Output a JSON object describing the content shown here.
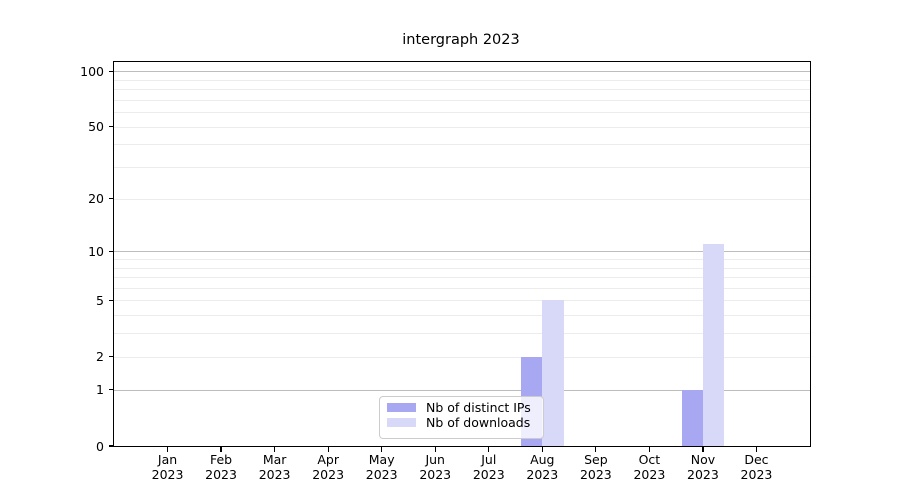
{
  "chart_data": {
    "type": "bar",
    "title": "intergraph 2023",
    "months": [
      "Jan",
      "Feb",
      "Mar",
      "Apr",
      "May",
      "Jun",
      "Jul",
      "Aug",
      "Sep",
      "Oct",
      "Nov",
      "Dec"
    ],
    "year": "2023",
    "categories": [
      "Jan 2023",
      "Feb 2023",
      "Mar 2023",
      "Apr 2023",
      "May 2023",
      "Jun 2023",
      "Jul 2023",
      "Aug 2023",
      "Sep 2023",
      "Oct 2023",
      "Nov 2023",
      "Dec 2023"
    ],
    "series": [
      {
        "name": "Nb of distinct IPs",
        "color": "#a8a8f2",
        "values": [
          0,
          0,
          0,
          0,
          0,
          0,
          0,
          2,
          0,
          0,
          1,
          0
        ]
      },
      {
        "name": "Nb of downloads",
        "color": "#d8d8f8",
        "values": [
          0,
          0,
          0,
          0,
          0,
          0,
          0,
          5,
          0,
          0,
          11,
          0
        ]
      }
    ],
    "yscale": "log10(v+1)",
    "ylim": [
      0,
      112
    ],
    "yticks": [
      0,
      1,
      2,
      5,
      10,
      20,
      50,
      100
    ],
    "grid": {
      "major_values": [
        1,
        10,
        100
      ],
      "minor_values": [
        2,
        3,
        4,
        5,
        6,
        7,
        8,
        9,
        20,
        30,
        40,
        50,
        60,
        70,
        80,
        90
      ],
      "major_color": "#bdbdbd",
      "minor_color": "#ececec"
    },
    "legend": {
      "position": "lower center",
      "entries": [
        "Nb of distinct IPs",
        "Nb of downloads"
      ]
    },
    "axis_color": "#000000",
    "background": "#ffffff"
  }
}
